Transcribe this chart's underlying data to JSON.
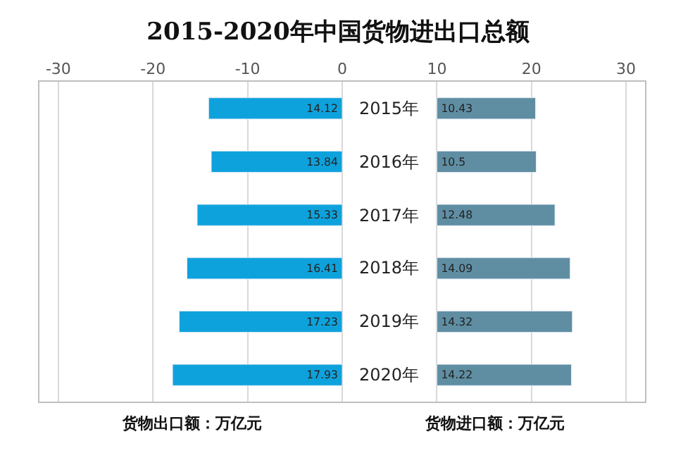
{
  "chart_data": {
    "type": "bar",
    "orientation": "horizontal",
    "title": "2015-2020年中国货物进出口总额",
    "categories": [
      "2015年",
      "2016年",
      "2017年",
      "2018年",
      "2019年",
      "2020年"
    ],
    "series": [
      {
        "name": "货物出口额：万亿元",
        "color": "#0ea2dc",
        "values": [
          -14.12,
          -13.84,
          -15.33,
          -16.41,
          -17.23,
          -17.93
        ],
        "base": [
          0,
          0,
          0,
          0,
          0,
          0
        ],
        "value_labels": [
          "14.12",
          "13.84",
          "15.33",
          "16.41",
          "17.23",
          "17.93"
        ]
      },
      {
        "name": "货物进口额：万亿元",
        "color": "#5f8ea3",
        "values": [
          10.43,
          10.5,
          12.48,
          14.09,
          14.32,
          14.22
        ],
        "base": [
          10,
          10,
          10,
          10,
          10,
          10
        ],
        "value_labels": [
          "10.43",
          "10.5",
          "12.48",
          "14.09",
          "14.32",
          "14.22"
        ]
      }
    ],
    "xlim": [
      -32,
      32
    ],
    "xticks": [
      -30,
      -20,
      -10,
      0,
      10,
      20,
      30
    ],
    "grid": "x",
    "legend": false
  }
}
